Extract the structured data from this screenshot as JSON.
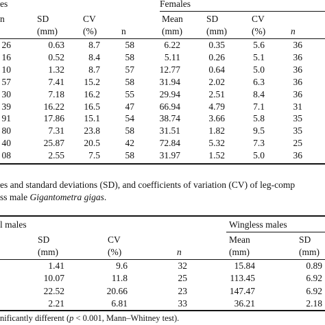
{
  "table1": {
    "header": {
      "group_left": "es",
      "group_right": "Females",
      "row1": [
        "n",
        "SD",
        "CV",
        "",
        "Mean",
        "SD",
        "CV",
        ""
      ],
      "row2": [
        "",
        "(mm)",
        "(%)",
        "n",
        "(mm)",
        "(mm)",
        "(%)",
        "n"
      ]
    },
    "rows": [
      [
        "26",
        "0.63",
        "8.7",
        "58",
        "6.22",
        "0.35",
        "5.6",
        "36"
      ],
      [
        "16",
        "0.52",
        "8.4",
        "58",
        "5.11",
        "0.26",
        "5.1",
        "36"
      ],
      [
        "10",
        "1.32",
        "8.7",
        "57",
        "12.77",
        "0.64",
        "5.0",
        "36"
      ],
      [
        "57",
        "7.41",
        "15.2",
        "58",
        "31.94",
        "2.02",
        "6.3",
        "36"
      ],
      [
        "30",
        "7.18",
        "16.2",
        "55",
        "29.94",
        "2.51",
        "8.4",
        "36"
      ],
      [
        "39",
        "16.22",
        "16.5",
        "47",
        "66.94",
        "4.79",
        "7.1",
        "31"
      ],
      [
        "91",
        "17.86",
        "15.1",
        "54",
        "38.74",
        "3.66",
        "5.8",
        "35"
      ],
      [
        "80",
        "7.31",
        "23.8",
        "58",
        "31.51",
        "1.82",
        "9.5",
        "35"
      ],
      [
        "40",
        "25.87",
        "20.5",
        "42",
        "72.84",
        "5.32",
        "7.3",
        "25"
      ],
      [
        "08",
        "2.55",
        "7.5",
        "58",
        "31.97",
        "1.52",
        "5.0",
        "36"
      ]
    ]
  },
  "caption": {
    "line1": "es and standard deviations (SD), and coefficients of variation (CV) of leg-comp",
    "line2_prefix": "ss male ",
    "line2_species": "Gigantometra gigas",
    "line2_suffix": "."
  },
  "table2": {
    "header": {
      "group_left": "l males",
      "group_right": "Wingless males",
      "row1": [
        "SD",
        "CV",
        "",
        "Mean",
        "SD"
      ],
      "row2": [
        "(mm)",
        "(%)",
        "n",
        "(mm)",
        "(mm)"
      ]
    },
    "rows": [
      [
        "1.41",
        "9.6",
        "32",
        "15.84",
        "0.89"
      ],
      [
        "10.07",
        "11.8",
        "25",
        "113.45",
        "6.92"
      ],
      [
        "22.52",
        "20.66",
        "23",
        "147.47",
        "6.92"
      ],
      [
        "2.21",
        "6.81",
        "33",
        "36.21",
        "2.18"
      ]
    ]
  },
  "footnote": {
    "prefix": "nificantly different (",
    "p_symbol": "p",
    "suffix": " < 0.001, Mann–Whitney test)."
  }
}
